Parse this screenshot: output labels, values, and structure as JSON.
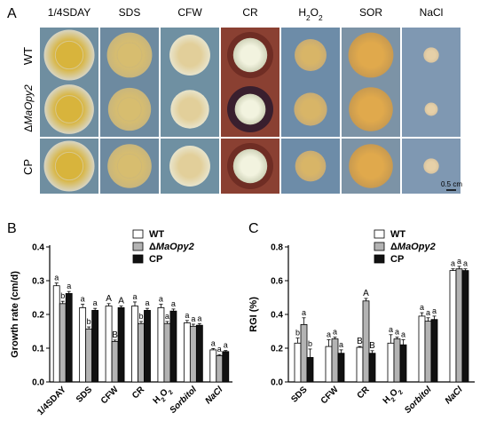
{
  "panels": {
    "a": "A",
    "b": "B",
    "c": "C"
  },
  "plates": {
    "columns": [
      "1/4SDAY",
      "SDS",
      "CFW",
      "CR",
      "H2O2",
      "SOR",
      "NaCl"
    ],
    "rows": [
      "WT",
      "ΔMaOpy2",
      "CP"
    ],
    "scale_bar": "0.5 cm",
    "colony_fraction": [
      [
        0.92,
        0.82,
        0.74,
        0.62,
        0.58,
        0.82,
        0.28
      ],
      [
        0.9,
        0.78,
        0.7,
        0.56,
        0.6,
        0.8,
        0.24
      ],
      [
        0.92,
        0.8,
        0.74,
        0.62,
        0.56,
        0.8,
        0.28
      ]
    ],
    "colors": {
      "plate_bg": [
        "#6f8ea0",
        "#6d8aa0",
        "#6f90a2",
        "#8a4032",
        "#6d8ca8",
        "#7c93a6",
        "#7f98b2"
      ],
      "colony_edge": [
        "#d8d5c4",
        "#c9b67c",
        "#e8e4cc",
        "#cfd2b8",
        "#c8ac74",
        "#c89a50",
        "#d8c4a0"
      ],
      "colony_center": [
        "#d8b43c",
        "#d7bd6f",
        "#e2cf9a",
        "#f2f3df",
        "#d8b567",
        "#e0a94c",
        "#e6d0a8"
      ]
    }
  },
  "chart_data": [
    {
      "type": "bar",
      "panel": "B",
      "ylabel": "Growth rate (cm/d)",
      "ylim": [
        0,
        0.4
      ],
      "yticks": [
        "0.0",
        "0.1",
        "0.2",
        "0.3",
        "0.4"
      ],
      "categories": [
        "1/4SDAY",
        "SDS",
        "CFW",
        "CR",
        "H2O2",
        "Sorbitol",
        "NaCl"
      ],
      "series": [
        {
          "name": "WT",
          "color": "#ffffff",
          "values": [
            0.285,
            0.22,
            0.225,
            0.225,
            0.22,
            0.175,
            0.095
          ],
          "errors": [
            0.008,
            0.01,
            0.007,
            0.012,
            0.01,
            0.007,
            0.004
          ]
        },
        {
          "name": "ΔMaOpy2",
          "color": "#b3b3b3",
          "values": [
            0.232,
            0.157,
            0.12,
            0.173,
            0.173,
            0.165,
            0.078
          ],
          "errors": [
            0.007,
            0.006,
            0.004,
            0.006,
            0.006,
            0.006,
            0.003
          ]
        },
        {
          "name": "CP",
          "color": "#111111",
          "values": [
            0.262,
            0.212,
            0.22,
            0.212,
            0.21,
            0.168,
            0.09
          ],
          "errors": [
            0.006,
            0.006,
            0.005,
            0.006,
            0.006,
            0.005,
            0.003
          ]
        }
      ],
      "letters": [
        [
          "a",
          "b",
          "a"
        ],
        [
          "a",
          "b",
          "a"
        ],
        [
          "A",
          "B",
          "A"
        ],
        [
          "a",
          "b",
          "a"
        ],
        [
          "a",
          "a",
          "a"
        ],
        [
          "a",
          "a",
          "a"
        ],
        [
          "a",
          "a",
          "a"
        ]
      ]
    },
    {
      "type": "bar",
      "panel": "C",
      "ylabel": "RGI (%)",
      "ylim": [
        0,
        0.8
      ],
      "yticks": [
        "0.0",
        "0.2",
        "0.4",
        "0.6",
        "0.8"
      ],
      "categories": [
        "SDS",
        "CFW",
        "CR",
        "H2O2",
        "Sorbitol",
        "NaCl"
      ],
      "series": [
        {
          "name": "WT",
          "color": "#ffffff",
          "values": [
            0.23,
            0.21,
            0.205,
            0.23,
            0.39,
            0.66
          ],
          "errors": [
            0.03,
            0.04,
            0.005,
            0.05,
            0.02,
            0.01
          ]
        },
        {
          "name": "ΔMaOpy2",
          "color": "#b3b3b3",
          "values": [
            0.34,
            0.255,
            0.48,
            0.255,
            0.36,
            0.67
          ],
          "errors": [
            0.04,
            0.01,
            0.015,
            0.01,
            0.02,
            0.015
          ]
        },
        {
          "name": "CP",
          "color": "#111111",
          "values": [
            0.145,
            0.17,
            0.17,
            0.22,
            0.37,
            0.66
          ],
          "errors": [
            0.05,
            0.02,
            0.015,
            0.03,
            0.02,
            0.01
          ]
        }
      ],
      "letters": [
        [
          "b",
          "a",
          "b"
        ],
        [
          "a",
          "a",
          "a"
        ],
        [
          "B",
          "A",
          "B"
        ],
        [
          "a",
          "a",
          "a"
        ],
        [
          "a",
          "a",
          "a"
        ],
        [
          "a",
          "a",
          "a"
        ]
      ]
    }
  ]
}
